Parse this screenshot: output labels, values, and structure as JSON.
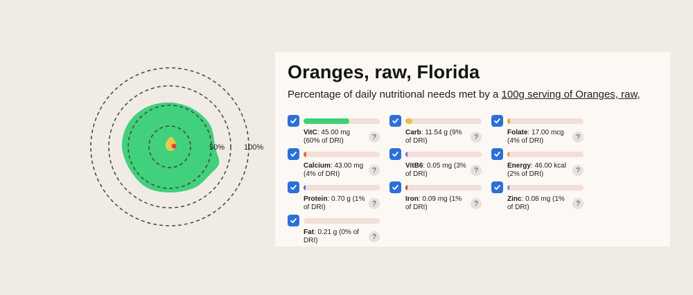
{
  "chart": {
    "label_50": "50%",
    "label_100": "100%"
  },
  "card": {
    "title": "Oranges, raw, Florida",
    "subtitle_prefix": "Percentage of daily nutritional needs met by a ",
    "subtitle_link": "100g serving of Oranges, raw,",
    "help_label": "?",
    "colors": {
      "checkbox_blue": "#2d6fd8",
      "bar_background": "#f3ded8",
      "blob_green": "#41d07b"
    },
    "nutrients": [
      {
        "name": "VitC",
        "detail": ": 45.00 mg (60% of DRI)",
        "percent": 60,
        "color": "#3fcf78"
      },
      {
        "name": "Carb",
        "detail": ": 11.54 g (9% of DRI)",
        "percent": 9,
        "color": "#e4c04d"
      },
      {
        "name": "Folate",
        "detail": ": 17.00 mcg (4% of DRI)",
        "percent": 4,
        "color": "#e9a23c"
      },
      {
        "name": "Calcium",
        "detail": ": 43.00 mg (4% of DRI)",
        "percent": 4,
        "color": "#e0663c"
      },
      {
        "name": "VitB6",
        "detail": ": 0.05 mg (3% of DRI)",
        "percent": 3,
        "color": "#8d5fd3"
      },
      {
        "name": "Energy",
        "detail": ": 46.00 kcal (2% of DRI)",
        "percent": 2,
        "color": "#ea9a3a"
      },
      {
        "name": "Protein",
        "detail": ": 0.70 g (1% of DRI)",
        "percent": 1,
        "color": "#5570d6"
      },
      {
        "name": "Iron",
        "detail": ": 0.09 mg (1% of DRI)",
        "percent": 1,
        "color": "#b94a48"
      },
      {
        "name": "Zinc",
        "detail": ": 0.08 mg (1% of DRI)",
        "percent": 1,
        "color": "#7f8fa6"
      },
      {
        "name": "Fat",
        "detail": ": 0.21 g (0% of DRI)",
        "percent": 0,
        "color": "#999999"
      }
    ]
  }
}
